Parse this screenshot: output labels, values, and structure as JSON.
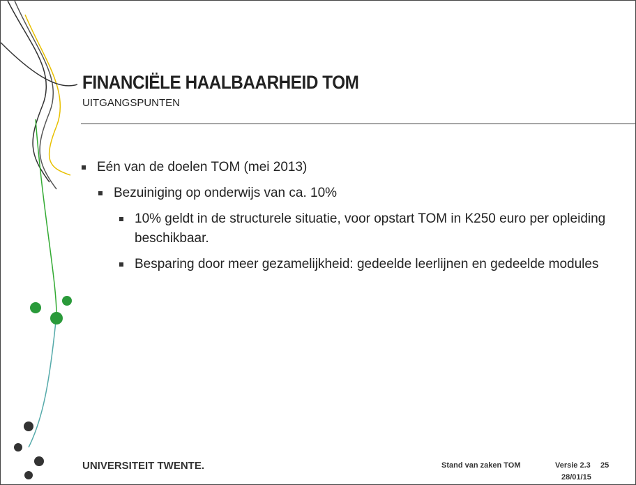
{
  "header": {
    "title": "FINANCIËLE HAALBAARHEID TOM",
    "subtitle": "UITGANGSPUNTEN"
  },
  "bullets": [
    {
      "text": "Eén van de doelen TOM (mei 2013)",
      "level": 1
    },
    {
      "text": "Bezuiniging op onderwijs van ca. 10%",
      "level": 2
    },
    {
      "text": "10% geldt in de structurele situatie, voor opstart TOM in K250 euro per opleiding beschikbaar.",
      "level": 3
    },
    {
      "text": "Besparing door meer gezamelijkheid: gedeelde leerlijnen en gedeelde modules",
      "level": 3
    }
  ],
  "footer": {
    "logo": "UNIVERSITEIT TWENTE.",
    "label": "Stand van zaken TOM",
    "version": "Versie 2.3",
    "date": "28/01/15",
    "page": "25"
  }
}
